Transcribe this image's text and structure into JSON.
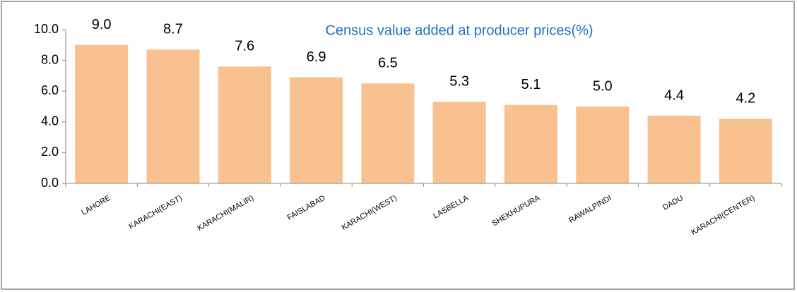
{
  "chart_data": {
    "type": "bar",
    "title": "Census value added at producer prices(%)",
    "categories": [
      "LAHORE",
      "KARACHI(EAST)",
      "KARACHI(MALIR)",
      "FAISLABAD",
      "KARACHI(WEST)",
      "LASBELLA",
      "SHEKHUPURA",
      "RAWALPINDI",
      "DADU",
      "KARACHI(CENTER)"
    ],
    "values": [
      9.0,
      8.7,
      7.6,
      6.9,
      6.5,
      5.3,
      5.1,
      5.0,
      4.4,
      4.2
    ],
    "value_labels": [
      "9.0",
      "8.7",
      "7.6",
      "6.9",
      "6.5",
      "5.3",
      "5.1",
      "5.0",
      "4.4",
      "4.2"
    ],
    "color": "#f9c090",
    "ylim": [
      0,
      10
    ],
    "yticks": [
      {
        "value": 0,
        "label": "0.0"
      },
      {
        "value": 2,
        "label": "2.0"
      },
      {
        "value": 4,
        "label": "4.0"
      },
      {
        "value": 6,
        "label": "6.0"
      },
      {
        "value": 8,
        "label": "8.0"
      },
      {
        "value": 10,
        "label": "10.0"
      }
    ],
    "grid": false
  }
}
